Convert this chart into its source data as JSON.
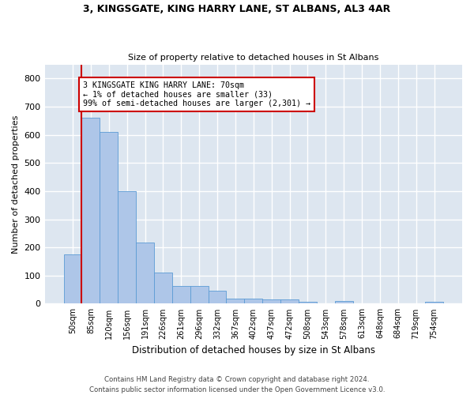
{
  "title1": "3, KINGSGATE, KING HARRY LANE, ST ALBANS, AL3 4AR",
  "title2": "Size of property relative to detached houses in St Albans",
  "xlabel": "Distribution of detached houses by size in St Albans",
  "ylabel": "Number of detached properties",
  "bar_labels": [
    "50sqm",
    "85sqm",
    "120sqm",
    "156sqm",
    "191sqm",
    "226sqm",
    "261sqm",
    "296sqm",
    "332sqm",
    "367sqm",
    "402sqm",
    "437sqm",
    "472sqm",
    "508sqm",
    "543sqm",
    "578sqm",
    "613sqm",
    "648sqm",
    "684sqm",
    "719sqm",
    "754sqm"
  ],
  "bar_heights": [
    175,
    660,
    610,
    400,
    218,
    110,
    63,
    63,
    45,
    18,
    17,
    16,
    14,
    6,
    0,
    9,
    0,
    0,
    0,
    0,
    8
  ],
  "bar_color": "#aec6e8",
  "bar_edge_color": "#5b9bd5",
  "annotation_line1": "3 KINGSGATE KING HARRY LANE: 70sqm",
  "annotation_line2": "← 1% of detached houses are smaller (33)",
  "annotation_line3": "99% of semi-detached houses are larger (2,301) →",
  "vline_color": "#cc0000",
  "box_color": "#cc0000",
  "bg_color": "#dde6f0",
  "footer": "Contains HM Land Registry data © Crown copyright and database right 2024.\nContains public sector information licensed under the Open Government Licence v3.0.",
  "ylim": [
    0,
    850
  ],
  "yticks": [
    0,
    100,
    200,
    300,
    400,
    500,
    600,
    700,
    800
  ]
}
